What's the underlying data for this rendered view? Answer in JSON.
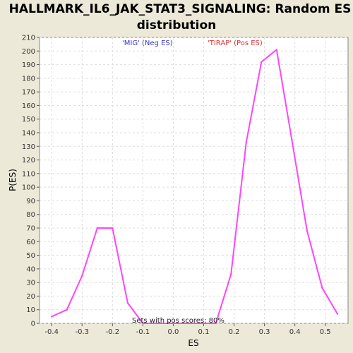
{
  "chart_data": {
    "type": "line",
    "title_line1": "HALLMARK_IL6_JAK_STAT3_SIGNALING: Random ES",
    "title_line2": "distribution",
    "xlabel": "ES",
    "ylabel": "P(ES)",
    "xlim": [
      -0.44,
      0.575
    ],
    "ylim": [
      0,
      210
    ],
    "x_ticks": [
      "-0.4",
      "-0.3",
      "-0.2",
      "-0.1",
      "0.0",
      "0.1",
      "0.2",
      "0.3",
      "0.4",
      "0.5"
    ],
    "x_tick_values": [
      -0.4,
      -0.3,
      -0.2,
      -0.1,
      0.0,
      0.1,
      0.2,
      0.3,
      0.4,
      0.5
    ],
    "y_ticks": [
      0,
      10,
      20,
      30,
      40,
      50,
      60,
      70,
      80,
      90,
      100,
      110,
      120,
      130,
      140,
      150,
      160,
      170,
      180,
      190,
      200,
      210
    ],
    "grid": true,
    "series": [
      {
        "color": "#ff44ff",
        "x": [
          -0.4,
          -0.35,
          -0.3,
          -0.25,
          -0.2,
          -0.15,
          -0.1,
          0.0,
          0.14,
          0.19,
          0.24,
          0.29,
          0.34,
          0.39,
          0.44,
          0.49,
          0.54
        ],
        "y": [
          5,
          10,
          35,
          70,
          70,
          15,
          0,
          0,
          0,
          36,
          133,
          192,
          201,
          135,
          68,
          26,
          7
        ]
      }
    ],
    "annotations": {
      "neg": {
        "text": "'MIG' (Neg ES)",
        "color": "#3333cc"
      },
      "pos": {
        "text": "'TIRAP' (Pos ES)",
        "color": "#dd3333"
      },
      "footer": {
        "text": "Sets with pos scores: 80%",
        "color": "#222222"
      }
    }
  }
}
